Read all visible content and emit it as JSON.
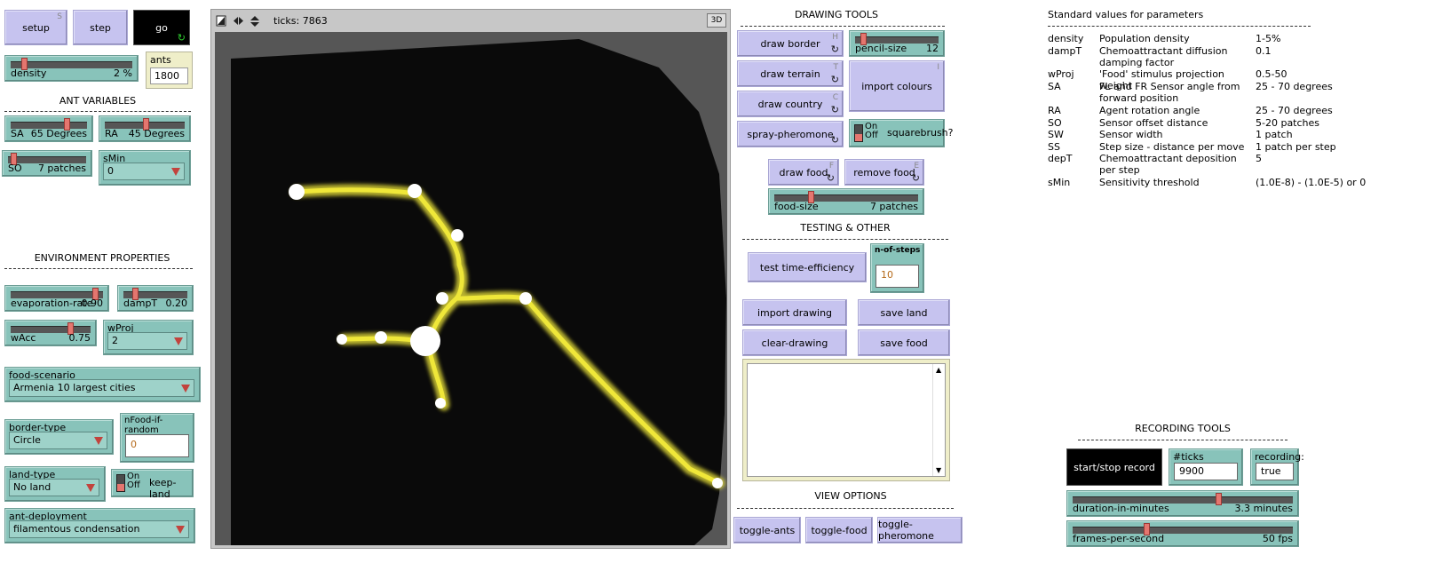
{
  "buttons": {
    "setup": {
      "label": "setup",
      "key": "S"
    },
    "step": {
      "label": "step"
    },
    "go": {
      "label": "go",
      "forever": "↻"
    }
  },
  "density": {
    "label": "density",
    "value": "2 %",
    "fraction": 0.15
  },
  "ants": {
    "title": "ants",
    "value": "1800"
  },
  "ant_variables": {
    "heading": "ANT VARIABLES",
    "SA": {
      "label": "SA",
      "value": "65 Degrees",
      "fraction": 0.7
    },
    "RA": {
      "label": "RA",
      "value": "45 Degrees",
      "fraction": 0.5
    },
    "SO": {
      "label": "SO",
      "value": "7 patches",
      "fraction": 0.02
    },
    "sMin": {
      "title": "sMin",
      "value": "0"
    }
  },
  "environment": {
    "heading": "ENVIRONMENT PROPERTIES",
    "evaporation": {
      "label": "evaporation-rate",
      "value": "0.90",
      "fraction": 0.9
    },
    "dampT": {
      "label": "dampT",
      "value": "0.20",
      "fraction": 0.2
    },
    "wAcc": {
      "label": "wAcc",
      "value": "0.75",
      "fraction": 0.75
    },
    "wProj": {
      "title": "wProj",
      "value": "2"
    },
    "food_scenario": {
      "title": "food-scenario",
      "value": "Armenia 10 largest cities"
    },
    "border_type": {
      "title": "border-type",
      "value": "Circle"
    },
    "nFood": {
      "title": "nFood-if-random",
      "value": "0"
    },
    "land_type": {
      "title": "land-type",
      "value": "No land"
    },
    "keep_land": {
      "on": "On",
      "off": "Off",
      "label": "keep-land"
    },
    "ant_deployment": {
      "title": "ant-deployment",
      "value": "filamentous condensation"
    }
  },
  "view": {
    "ticks": "ticks: 7863",
    "threed": "3D"
  },
  "drawing_tools": {
    "heading": "DRAWING TOOLS",
    "draw_border": {
      "label": "draw border",
      "key": "H"
    },
    "draw_terrain": {
      "label": "draw terrain",
      "key": "T"
    },
    "draw_country": {
      "label": "draw country",
      "key": "C"
    },
    "spray_pheromone": {
      "label": "spray-pheromone"
    },
    "pencil_size": {
      "label": "pencil-size",
      "value": "12",
      "fraction": 0.05
    },
    "import_colours": {
      "label": "import colours",
      "key": "I"
    },
    "squarebrush": {
      "on": "On",
      "off": "Off",
      "label": "squarebrush?"
    },
    "draw_food": {
      "label": "draw food",
      "key": "F"
    },
    "remove_food": {
      "label": "remove food",
      "key": "E"
    },
    "food_size": {
      "label": "food-size",
      "value": "7 patches",
      "fraction": 0.25
    }
  },
  "testing": {
    "heading": "TESTING & OTHER",
    "test_time": {
      "label": "test time-efficiency"
    },
    "n_of_steps": {
      "title": "n-of-steps",
      "value": "10"
    },
    "import_drawing": {
      "label": "import drawing"
    },
    "save_land": {
      "label": "save land"
    },
    "clear_drawing": {
      "label": "clear-drawing"
    },
    "save_food": {
      "label": "save food"
    }
  },
  "view_options": {
    "heading": "VIEW OPTIONS",
    "toggle_ants": {
      "label": "toggle-ants"
    },
    "toggle_food": {
      "label": "toggle-food"
    },
    "toggle_pheromone": {
      "label": "toggle-pheromone"
    }
  },
  "params": {
    "heading": "Standard values for parameters",
    "rows": [
      {
        "name": "density",
        "desc": "Population density",
        "value": "1-5%"
      },
      {
        "name": "dampT",
        "desc": "Chemoattractant diffusion damping factor",
        "value": "0.1"
      },
      {
        "name": "wProj",
        "desc": "'Food' stimulus projection weight",
        "value": "0.5-50"
      },
      {
        "name": "SA",
        "desc": "FL and FR Sensor angle from forward position",
        "value": "25 - 70 degrees"
      },
      {
        "name": "RA",
        "desc": "Agent rotation angle",
        "value": "25 - 70 degrees"
      },
      {
        "name": "SO",
        "desc": "Sensor offset distance",
        "value": "5-20 patches"
      },
      {
        "name": "SW",
        "desc": "Sensor width",
        "value": "1 patch"
      },
      {
        "name": "SS",
        "desc": "Step size - distance per move",
        "value": "1 patch per step"
      },
      {
        "name": "depT",
        "desc": "Chemoattractant deposition per step",
        "value": "5"
      },
      {
        "name": "sMin",
        "desc": "Sensitivity threshold",
        "value": "(1.0E-8) - (1.0E-5) or 0"
      }
    ]
  },
  "recording": {
    "heading": "RECORDING TOOLS",
    "start_stop": {
      "label": "start/stop record"
    },
    "ticks_recording": {
      "title": "#ticks recording:",
      "value": "9900"
    },
    "recording_flag": {
      "title": "recording:",
      "value": "true"
    },
    "duration": {
      "label": "duration-in-minutes",
      "value": "3.3 minutes",
      "fraction": 0.65
    },
    "fps": {
      "label": "frames-per-second",
      "value": "50 fps",
      "fraction": 0.33
    }
  },
  "colors": {
    "button": "#c6c3ef",
    "widget": "#88c3ba",
    "pheromone": "#f2ea3a",
    "food": "#ffffff",
    "world": "#0a0a0a"
  }
}
